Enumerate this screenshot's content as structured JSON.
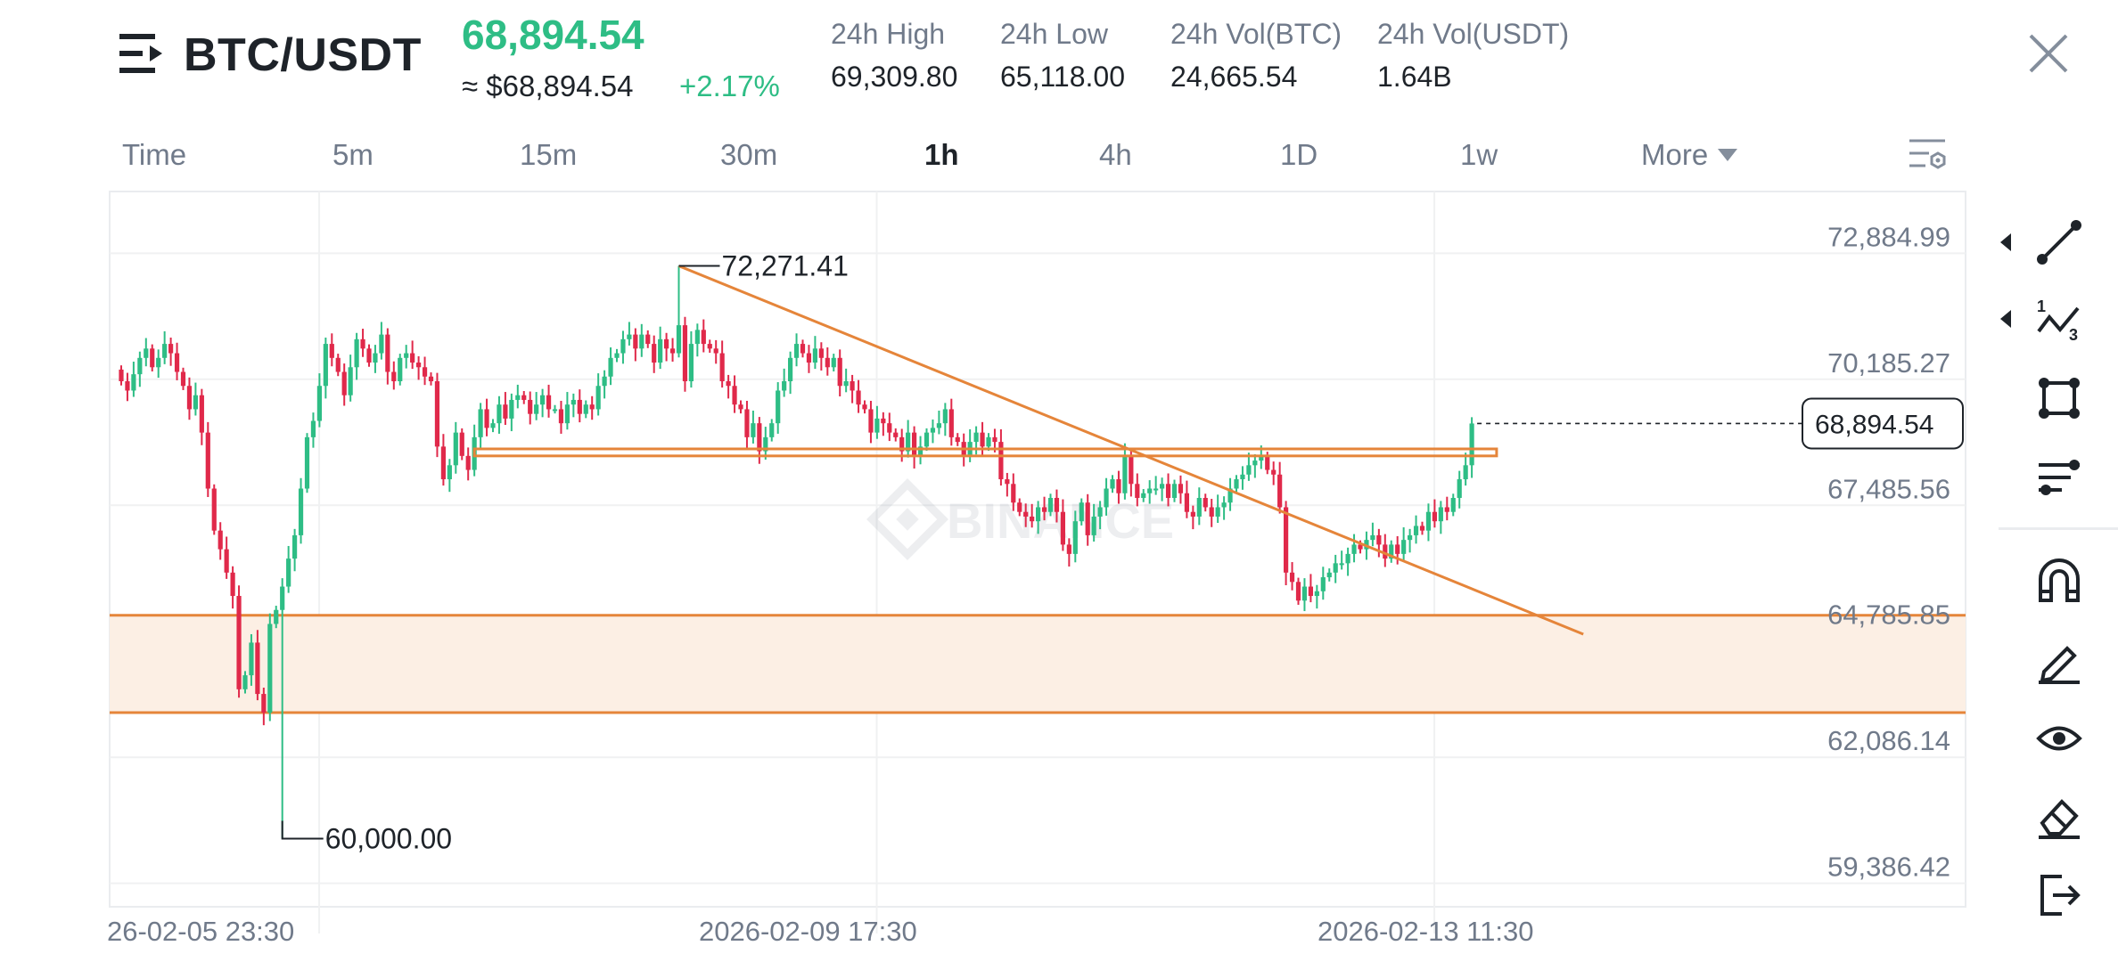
{
  "header": {
    "pair": "BTC/USDT",
    "last_price": "68,894.54",
    "approx_price": "≈ $68,894.54",
    "change_pct": "+2.17%",
    "stats": [
      {
        "label": "24h High",
        "value": "69,309.80"
      },
      {
        "label": "24h Low",
        "value": "65,118.00"
      },
      {
        "label": "24h Vol(BTC)",
        "value": "24,665.54"
      },
      {
        "label": "24h Vol(USDT)",
        "value": "1.64B"
      }
    ]
  },
  "timeframes": {
    "items": [
      "Time",
      "5m",
      "15m",
      "30m",
      "1h",
      "4h",
      "1D",
      "1w",
      "More"
    ],
    "active": "1h"
  },
  "colors": {
    "up": "#2ebd85",
    "down": "#e0294a",
    "drawing": "#e5853a",
    "zone_fill": "#fcefe4"
  },
  "toolbar": {
    "icons": [
      "trend-line-icon",
      "fibonacci-icon",
      "shape-icon",
      "parallel-lines-icon",
      "magnet-icon",
      "pencil-icon",
      "eye-icon",
      "eraser-icon",
      "exit-icon"
    ]
  },
  "chart_data": {
    "type": "candlestick",
    "watermark": "BINANCE",
    "y_ticks": [
      "72,884.99",
      "70,185.27",
      "67,485.56",
      "64,785.85",
      "62,086.14",
      "59,386.42"
    ],
    "y_tick_values": [
      72884.99,
      70185.27,
      67485.56,
      64785.85,
      62086.14,
      59386.42
    ],
    "x_ticks": [
      "26-02-05 23:30",
      "2026-02-09 17:30",
      "2026-02-13 11:30"
    ],
    "x_tick_index": [
      19,
      109,
      199
    ],
    "last_price_label": "68,894.54",
    "high_label": "72,271.41",
    "low_label": "60,000.00",
    "annotations": {
      "trend_line": {
        "from": {
          "index": 90,
          "value": 72271.41
        },
        "to": {
          "index": 236,
          "value": 64380
        }
      },
      "resistance_box": {
        "from_index": 57,
        "to_index": 222,
        "top": 68350,
        "bottom": 68200
      },
      "support_zone": {
        "top": 64785.85,
        "bottom": 62700
      }
    },
    "closes": [
      69800,
      69600,
      69950,
      70300,
      70500,
      70100,
      70300,
      70600,
      70400,
      70000,
      69700,
      69200,
      69500,
      68700,
      67500,
      66600,
      66200,
      65700,
      65200,
      63200,
      63500,
      64200,
      63100,
      62700,
      64600,
      64900,
      65400,
      66000,
      66500,
      67500,
      68600,
      68950,
      69700,
      70600,
      70300,
      70000,
      69500,
      70100,
      70700,
      70500,
      70200,
      70400,
      70800,
      70000,
      69800,
      70300,
      70400,
      70200,
      70100,
      69900,
      69800,
      68400,
      67700,
      68000,
      68700,
      68200,
      67900,
      68600,
      69200,
      68800,
      68900,
      69300,
      69000,
      69400,
      69500,
      69400,
      69100,
      69300,
      69500,
      69200,
      69200,
      68900,
      69300,
      69400,
      69100,
      69300,
      69200,
      69700,
      69900,
      70300,
      70400,
      70700,
      70800,
      70500,
      70800,
      70600,
      70200,
      70700,
      70500,
      70400,
      71000,
      69800,
      70600,
      70900,
      70600,
      70500,
      70400,
      69800,
      69700,
      69300,
      69200,
      68600,
      68900,
      68300,
      68600,
      68900,
      69600,
      69800,
      70300,
      70600,
      70400,
      70200,
      70500,
      70300,
      70100,
      70300,
      69700,
      69800,
      69600,
      69300,
      69200,
      68700,
      69000,
      68900,
      68700,
      68600,
      68300,
      68700,
      68200,
      68400,
      68700,
      68800,
      68900,
      69200,
      68600,
      68500,
      68200,
      68500,
      68700,
      68400,
      68600,
      68500,
      67700,
      67600,
      67200,
      67000,
      66900,
      66800,
      67100,
      67000,
      67300,
      67000,
      66300,
      66100,
      66800,
      67200,
      66500,
      66900,
      67100,
      67500,
      67700,
      67400,
      68200,
      67600,
      67300,
      67400,
      67500,
      67500,
      67600,
      67300,
      67600,
      67400,
      67000,
      66900,
      67300,
      67100,
      66900,
      67100,
      67200,
      67500,
      67700,
      67800,
      68000,
      68100,
      68200,
      67900,
      67800,
      67100,
      65700,
      65500,
      65100,
      65400,
      65200,
      65300,
      65600,
      65700,
      65900,
      65900,
      66100,
      66300,
      66200,
      66400,
      66500,
      66300,
      66000,
      66300,
      66100,
      66400,
      66500,
      66700,
      66600,
      67000,
      66800,
      67100,
      67000,
      67300,
      67700,
      68000,
      68894.54
    ],
    "session_high": {
      "index": 90,
      "value": 72271.41
    },
    "session_low": {
      "index": 26,
      "value": 60000
    }
  }
}
